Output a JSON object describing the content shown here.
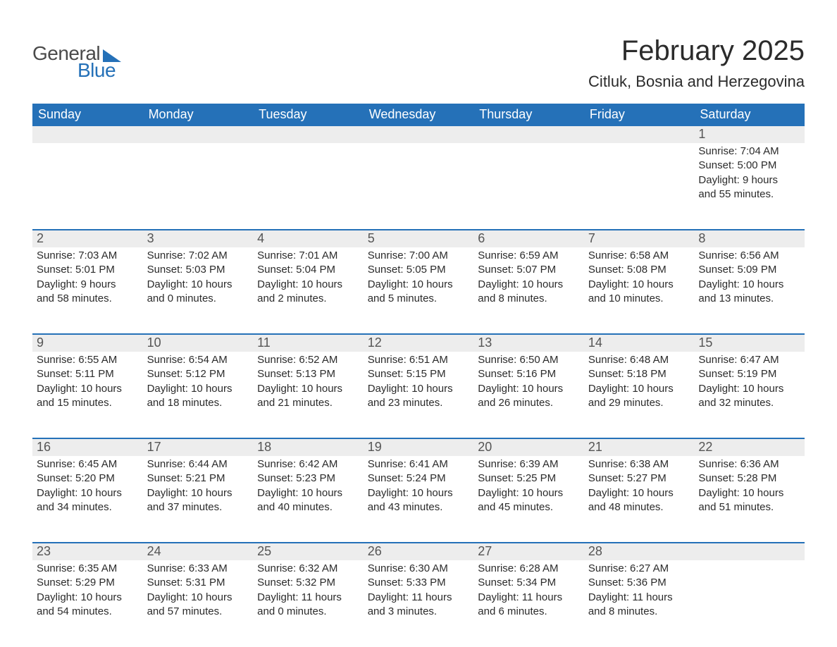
{
  "logo": {
    "text_general": "General",
    "text_blue": "Blue"
  },
  "title": "February 2025",
  "location": "Citluk, Bosnia and Herzegovina",
  "colors": {
    "header_bg": "#2571b8",
    "header_text": "#ffffff",
    "daynum_bg": "#ededed",
    "body_text": "#2b2b2b",
    "logo_gray": "#4a4a4a",
    "logo_blue": "#2571b8",
    "page_bg": "#ffffff",
    "rule": "#2571b8"
  },
  "day_names": [
    "Sunday",
    "Monday",
    "Tuesday",
    "Wednesday",
    "Thursday",
    "Friday",
    "Saturday"
  ],
  "layout": {
    "columns": 7,
    "rows": 5,
    "first_day_column_index": 6,
    "font_family": "Arial",
    "title_fontsize_pt": 30,
    "location_fontsize_pt": 16,
    "dayheader_fontsize_pt": 14,
    "daynum_fontsize_pt": 14,
    "body_fontsize_pt": 11
  },
  "weeks": [
    [
      {
        "num": "",
        "sunrise": "",
        "sunset": "",
        "daylight1": "",
        "daylight2": ""
      },
      {
        "num": "",
        "sunrise": "",
        "sunset": "",
        "daylight1": "",
        "daylight2": ""
      },
      {
        "num": "",
        "sunrise": "",
        "sunset": "",
        "daylight1": "",
        "daylight2": ""
      },
      {
        "num": "",
        "sunrise": "",
        "sunset": "",
        "daylight1": "",
        "daylight2": ""
      },
      {
        "num": "",
        "sunrise": "",
        "sunset": "",
        "daylight1": "",
        "daylight2": ""
      },
      {
        "num": "",
        "sunrise": "",
        "sunset": "",
        "daylight1": "",
        "daylight2": ""
      },
      {
        "num": "1",
        "sunrise": "Sunrise: 7:04 AM",
        "sunset": "Sunset: 5:00 PM",
        "daylight1": "Daylight: 9 hours",
        "daylight2": "and 55 minutes."
      }
    ],
    [
      {
        "num": "2",
        "sunrise": "Sunrise: 7:03 AM",
        "sunset": "Sunset: 5:01 PM",
        "daylight1": "Daylight: 9 hours",
        "daylight2": "and 58 minutes."
      },
      {
        "num": "3",
        "sunrise": "Sunrise: 7:02 AM",
        "sunset": "Sunset: 5:03 PM",
        "daylight1": "Daylight: 10 hours",
        "daylight2": "and 0 minutes."
      },
      {
        "num": "4",
        "sunrise": "Sunrise: 7:01 AM",
        "sunset": "Sunset: 5:04 PM",
        "daylight1": "Daylight: 10 hours",
        "daylight2": "and 2 minutes."
      },
      {
        "num": "5",
        "sunrise": "Sunrise: 7:00 AM",
        "sunset": "Sunset: 5:05 PM",
        "daylight1": "Daylight: 10 hours",
        "daylight2": "and 5 minutes."
      },
      {
        "num": "6",
        "sunrise": "Sunrise: 6:59 AM",
        "sunset": "Sunset: 5:07 PM",
        "daylight1": "Daylight: 10 hours",
        "daylight2": "and 8 minutes."
      },
      {
        "num": "7",
        "sunrise": "Sunrise: 6:58 AM",
        "sunset": "Sunset: 5:08 PM",
        "daylight1": "Daylight: 10 hours",
        "daylight2": "and 10 minutes."
      },
      {
        "num": "8",
        "sunrise": "Sunrise: 6:56 AM",
        "sunset": "Sunset: 5:09 PM",
        "daylight1": "Daylight: 10 hours",
        "daylight2": "and 13 minutes."
      }
    ],
    [
      {
        "num": "9",
        "sunrise": "Sunrise: 6:55 AM",
        "sunset": "Sunset: 5:11 PM",
        "daylight1": "Daylight: 10 hours",
        "daylight2": "and 15 minutes."
      },
      {
        "num": "10",
        "sunrise": "Sunrise: 6:54 AM",
        "sunset": "Sunset: 5:12 PM",
        "daylight1": "Daylight: 10 hours",
        "daylight2": "and 18 minutes."
      },
      {
        "num": "11",
        "sunrise": "Sunrise: 6:52 AM",
        "sunset": "Sunset: 5:13 PM",
        "daylight1": "Daylight: 10 hours",
        "daylight2": "and 21 minutes."
      },
      {
        "num": "12",
        "sunrise": "Sunrise: 6:51 AM",
        "sunset": "Sunset: 5:15 PM",
        "daylight1": "Daylight: 10 hours",
        "daylight2": "and 23 minutes."
      },
      {
        "num": "13",
        "sunrise": "Sunrise: 6:50 AM",
        "sunset": "Sunset: 5:16 PM",
        "daylight1": "Daylight: 10 hours",
        "daylight2": "and 26 minutes."
      },
      {
        "num": "14",
        "sunrise": "Sunrise: 6:48 AM",
        "sunset": "Sunset: 5:18 PM",
        "daylight1": "Daylight: 10 hours",
        "daylight2": "and 29 minutes."
      },
      {
        "num": "15",
        "sunrise": "Sunrise: 6:47 AM",
        "sunset": "Sunset: 5:19 PM",
        "daylight1": "Daylight: 10 hours",
        "daylight2": "and 32 minutes."
      }
    ],
    [
      {
        "num": "16",
        "sunrise": "Sunrise: 6:45 AM",
        "sunset": "Sunset: 5:20 PM",
        "daylight1": "Daylight: 10 hours",
        "daylight2": "and 34 minutes."
      },
      {
        "num": "17",
        "sunrise": "Sunrise: 6:44 AM",
        "sunset": "Sunset: 5:21 PM",
        "daylight1": "Daylight: 10 hours",
        "daylight2": "and 37 minutes."
      },
      {
        "num": "18",
        "sunrise": "Sunrise: 6:42 AM",
        "sunset": "Sunset: 5:23 PM",
        "daylight1": "Daylight: 10 hours",
        "daylight2": "and 40 minutes."
      },
      {
        "num": "19",
        "sunrise": "Sunrise: 6:41 AM",
        "sunset": "Sunset: 5:24 PM",
        "daylight1": "Daylight: 10 hours",
        "daylight2": "and 43 minutes."
      },
      {
        "num": "20",
        "sunrise": "Sunrise: 6:39 AM",
        "sunset": "Sunset: 5:25 PM",
        "daylight1": "Daylight: 10 hours",
        "daylight2": "and 45 minutes."
      },
      {
        "num": "21",
        "sunrise": "Sunrise: 6:38 AM",
        "sunset": "Sunset: 5:27 PM",
        "daylight1": "Daylight: 10 hours",
        "daylight2": "and 48 minutes."
      },
      {
        "num": "22",
        "sunrise": "Sunrise: 6:36 AM",
        "sunset": "Sunset: 5:28 PM",
        "daylight1": "Daylight: 10 hours",
        "daylight2": "and 51 minutes."
      }
    ],
    [
      {
        "num": "23",
        "sunrise": "Sunrise: 6:35 AM",
        "sunset": "Sunset: 5:29 PM",
        "daylight1": "Daylight: 10 hours",
        "daylight2": "and 54 minutes."
      },
      {
        "num": "24",
        "sunrise": "Sunrise: 6:33 AM",
        "sunset": "Sunset: 5:31 PM",
        "daylight1": "Daylight: 10 hours",
        "daylight2": "and 57 minutes."
      },
      {
        "num": "25",
        "sunrise": "Sunrise: 6:32 AM",
        "sunset": "Sunset: 5:32 PM",
        "daylight1": "Daylight: 11 hours",
        "daylight2": "and 0 minutes."
      },
      {
        "num": "26",
        "sunrise": "Sunrise: 6:30 AM",
        "sunset": "Sunset: 5:33 PM",
        "daylight1": "Daylight: 11 hours",
        "daylight2": "and 3 minutes."
      },
      {
        "num": "27",
        "sunrise": "Sunrise: 6:28 AM",
        "sunset": "Sunset: 5:34 PM",
        "daylight1": "Daylight: 11 hours",
        "daylight2": "and 6 minutes."
      },
      {
        "num": "28",
        "sunrise": "Sunrise: 6:27 AM",
        "sunset": "Sunset: 5:36 PM",
        "daylight1": "Daylight: 11 hours",
        "daylight2": "and 8 minutes."
      },
      {
        "num": "",
        "sunrise": "",
        "sunset": "",
        "daylight1": "",
        "daylight2": ""
      }
    ]
  ]
}
